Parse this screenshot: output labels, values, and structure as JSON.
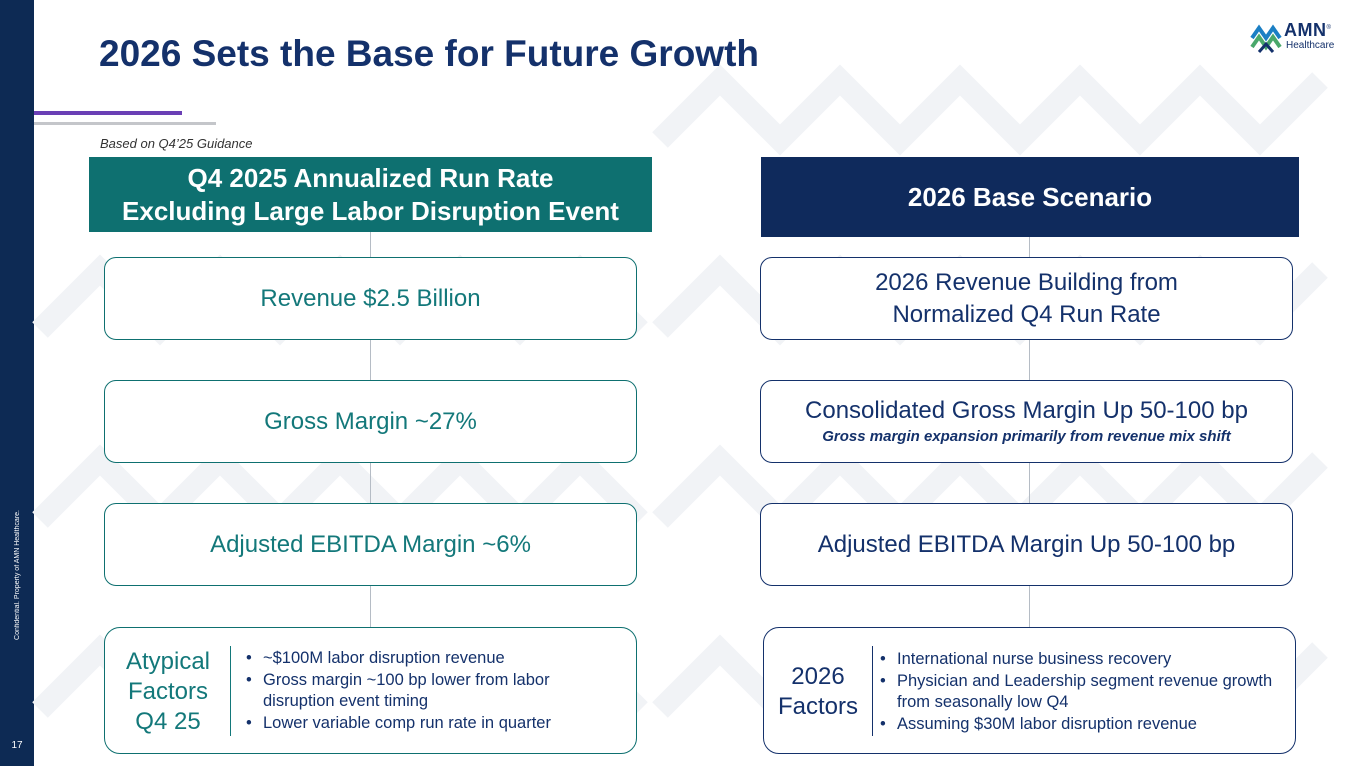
{
  "slide": {
    "title": "2026 Sets the Base for Future Growth",
    "subtitle": "Based on Q4’25 Guidance",
    "page_number": "17",
    "confidential": "Confidential. Property of AMN Healthcare."
  },
  "logo": {
    "word": "AMN",
    "mark": "®",
    "sub": "Healthcare",
    "colors": {
      "blue": "#1b7fc4",
      "green": "#4aa86b",
      "navy": "#14316b"
    }
  },
  "colors": {
    "teal": "#0e7070",
    "navy": "#0f2a5c",
    "purple_bar": "#6a3fb5",
    "sidebar": "#0d2a54"
  },
  "left": {
    "header_line1": "Q4 2025 Annualized Run Rate",
    "header_line2": "Excluding Large Labor Disruption Event",
    "boxes": [
      {
        "text": "Revenue $2.5 Billion"
      },
      {
        "text": "Gross Margin ~27%"
      },
      {
        "text": "Adjusted EBITDA Margin ~6%"
      }
    ],
    "factors": {
      "label_lines": [
        "Atypical",
        "Factors",
        "Q4 25"
      ],
      "bullets": [
        "~$100M labor disruption revenue",
        "Gross margin ~100 bp lower from labor disruption event timing",
        "Lower variable comp run rate in quarter"
      ]
    }
  },
  "right": {
    "header": "2026 Base Scenario",
    "boxes": [
      {
        "line1": "2026 Revenue Building from",
        "line2": "Normalized Q4 Run Rate"
      },
      {
        "text": "Consolidated Gross Margin Up 50-100 bp",
        "note": "Gross margin expansion primarily from revenue mix shift"
      },
      {
        "text": "Adjusted EBITDA Margin Up 50-100 bp"
      }
    ],
    "factors": {
      "label_lines": [
        "2026",
        "Factors"
      ],
      "bullets": [
        "International nurse business recovery",
        "Physician and Leadership segment revenue growth from seasonally low Q4",
        "Assuming $30M labor disruption revenue"
      ]
    }
  }
}
